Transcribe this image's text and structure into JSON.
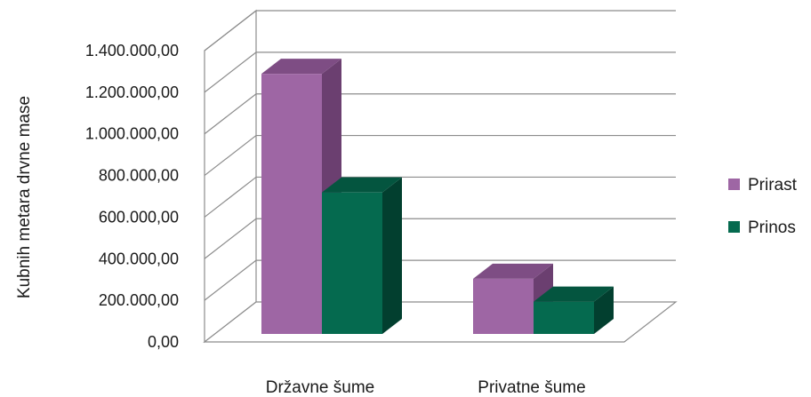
{
  "chart_data": {
    "type": "bar",
    "style": "3d-clustered-column",
    "categories": [
      "Državne šume",
      "Privatne šume"
    ],
    "series": [
      {
        "name": "Prirast",
        "values": [
          1250000,
          265000
        ],
        "color": "#9e66a4",
        "side_color": "#6b3f70",
        "top_color": "#7e4d84"
      },
      {
        "name": "Prinos",
        "values": [
          680000,
          155000
        ],
        "color": "#056a4f",
        "side_color": "#023f2f",
        "top_color": "#04553f"
      }
    ],
    "ylabel": "Kubnih metara drvne mase",
    "yticks": [
      "0,00",
      "200.000,00",
      "400.000,00",
      "600.000,00",
      "800.000,00",
      "1.000.000,00",
      "1.200.000,00",
      "1.400.000,00"
    ],
    "ylim": [
      0,
      1400000
    ],
    "grid": true,
    "legend_position": "right"
  }
}
